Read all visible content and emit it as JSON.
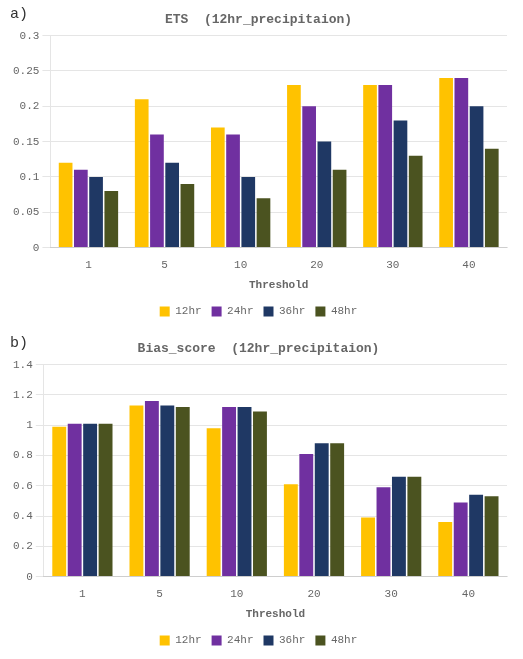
{
  "chart_data": [
    {
      "type": "bar",
      "title": "ETS  (12hr_precipitaion)",
      "x_label": "Threshold",
      "annotations": [
        "a)"
      ],
      "categories": [
        "1",
        "5",
        "10",
        "20",
        "30",
        "40"
      ],
      "series": [
        {
          "name": "12hr",
          "color": "#FFC200",
          "values": [
            0.12,
            0.21,
            0.17,
            0.23,
            0.23,
            0.24
          ]
        },
        {
          "name": "24hr",
          "color": "#7030A0",
          "values": [
            0.11,
            0.16,
            0.16,
            0.2,
            0.23,
            0.24
          ]
        },
        {
          "name": "36hr",
          "color": "#1F3864",
          "values": [
            0.1,
            0.12,
            0.1,
            0.15,
            0.18,
            0.2
          ]
        },
        {
          "name": "48hr",
          "color": "#4B5320",
          "values": [
            0.08,
            0.09,
            0.07,
            0.11,
            0.13,
            0.14
          ]
        }
      ],
      "ylim": [
        0,
        0.3
      ],
      "yticks": [
        0,
        0.05,
        0.1,
        0.15,
        0.2,
        0.25,
        0.3
      ],
      "grid": true,
      "legend": "bottom"
    },
    {
      "type": "bar",
      "title": "Bias_score  (12hr_precipitaion)",
      "x_label": "Threshold",
      "annotations": [
        "b)"
      ],
      "categories": [
        "1",
        "5",
        "10",
        "20",
        "30",
        "40"
      ],
      "series": [
        {
          "name": "12hr",
          "color": "#FFC200",
          "values": [
            0.99,
            1.13,
            0.98,
            0.61,
            0.39,
            0.36
          ]
        },
        {
          "name": "24hr",
          "color": "#7030A0",
          "values": [
            1.01,
            1.16,
            1.12,
            0.81,
            0.59,
            0.49
          ]
        },
        {
          "name": "36hr",
          "color": "#1F3864",
          "values": [
            1.01,
            1.13,
            1.12,
            0.88,
            0.66,
            0.54
          ]
        },
        {
          "name": "48hr",
          "color": "#4B5320",
          "values": [
            1.01,
            1.12,
            1.09,
            0.88,
            0.66,
            0.53
          ]
        }
      ],
      "ylim": [
        0,
        1.4
      ],
      "yticks": [
        0,
        0.2,
        0.4,
        0.6,
        0.8,
        1,
        1.2,
        1.4
      ],
      "grid": true,
      "legend": "bottom"
    }
  ]
}
